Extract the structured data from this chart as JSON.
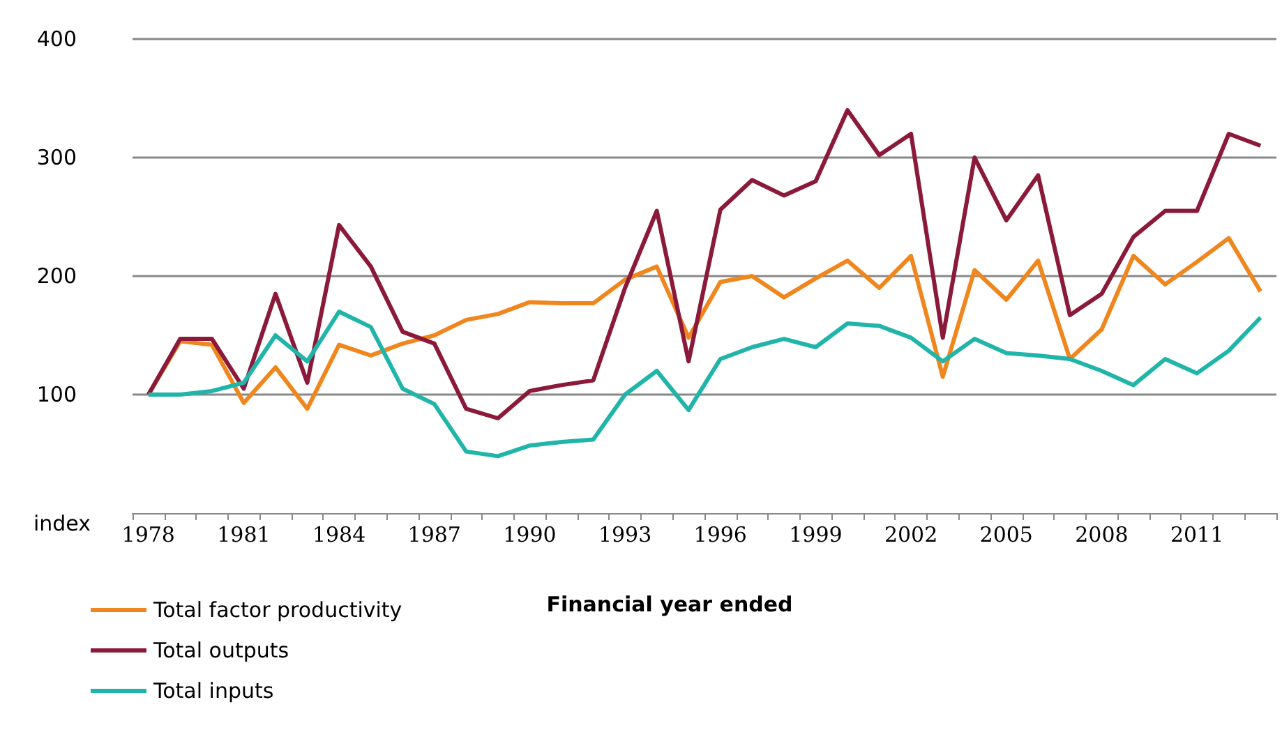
{
  "chart_data": {
    "type": "line",
    "xlabel": "Financial year ended",
    "ylabel": "index",
    "categories": [
      "1978",
      null,
      null,
      "1981",
      null,
      null,
      "1984",
      null,
      null,
      "1987",
      null,
      null,
      "1990",
      null,
      null,
      "1993",
      null,
      null,
      "1996",
      null,
      null,
      "1999",
      null,
      null,
      "2002",
      null,
      null,
      "2005",
      null,
      null,
      "2008",
      null,
      null,
      "2011",
      null,
      null
    ],
    "series": [
      {
        "name": "Total factor productivity",
        "color": "#f0861e",
        "values": [
          100,
          145,
          142,
          93,
          123,
          88,
          142,
          133,
          143,
          150,
          163,
          168,
          178,
          177,
          177,
          197,
          208,
          148,
          195,
          200,
          182,
          198,
          213,
          190,
          217,
          115,
          205,
          180,
          213,
          130,
          155,
          217,
          193,
          212,
          232,
          187
        ]
      },
      {
        "name": "Total outputs",
        "color": "#8b1a3a",
        "values": [
          100,
          147,
          147,
          105,
          185,
          110,
          243,
          208,
          153,
          143,
          88,
          80,
          103,
          108,
          112,
          190,
          255,
          128,
          256,
          281,
          268,
          280,
          340,
          302,
          320,
          148,
          300,
          247,
          285,
          167,
          185,
          233,
          255,
          255,
          320,
          310
        ]
      },
      {
        "name": "Total inputs",
        "color": "#20b5a8",
        "values": [
          100,
          100,
          103,
          110,
          150,
          128,
          170,
          157,
          105,
          92,
          52,
          48,
          57,
          60,
          62,
          100,
          120,
          87,
          130,
          140,
          147,
          140,
          160,
          158,
          148,
          128,
          147,
          135,
          133,
          130,
          120,
          108,
          130,
          118,
          137,
          165
        ]
      }
    ],
    "ylim": [
      0,
      400
    ],
    "yticks": [
      100,
      200,
      300,
      400
    ],
    "grid": "y",
    "legend": "bottom left",
    "marker": "none",
    "line_style": "solid"
  }
}
